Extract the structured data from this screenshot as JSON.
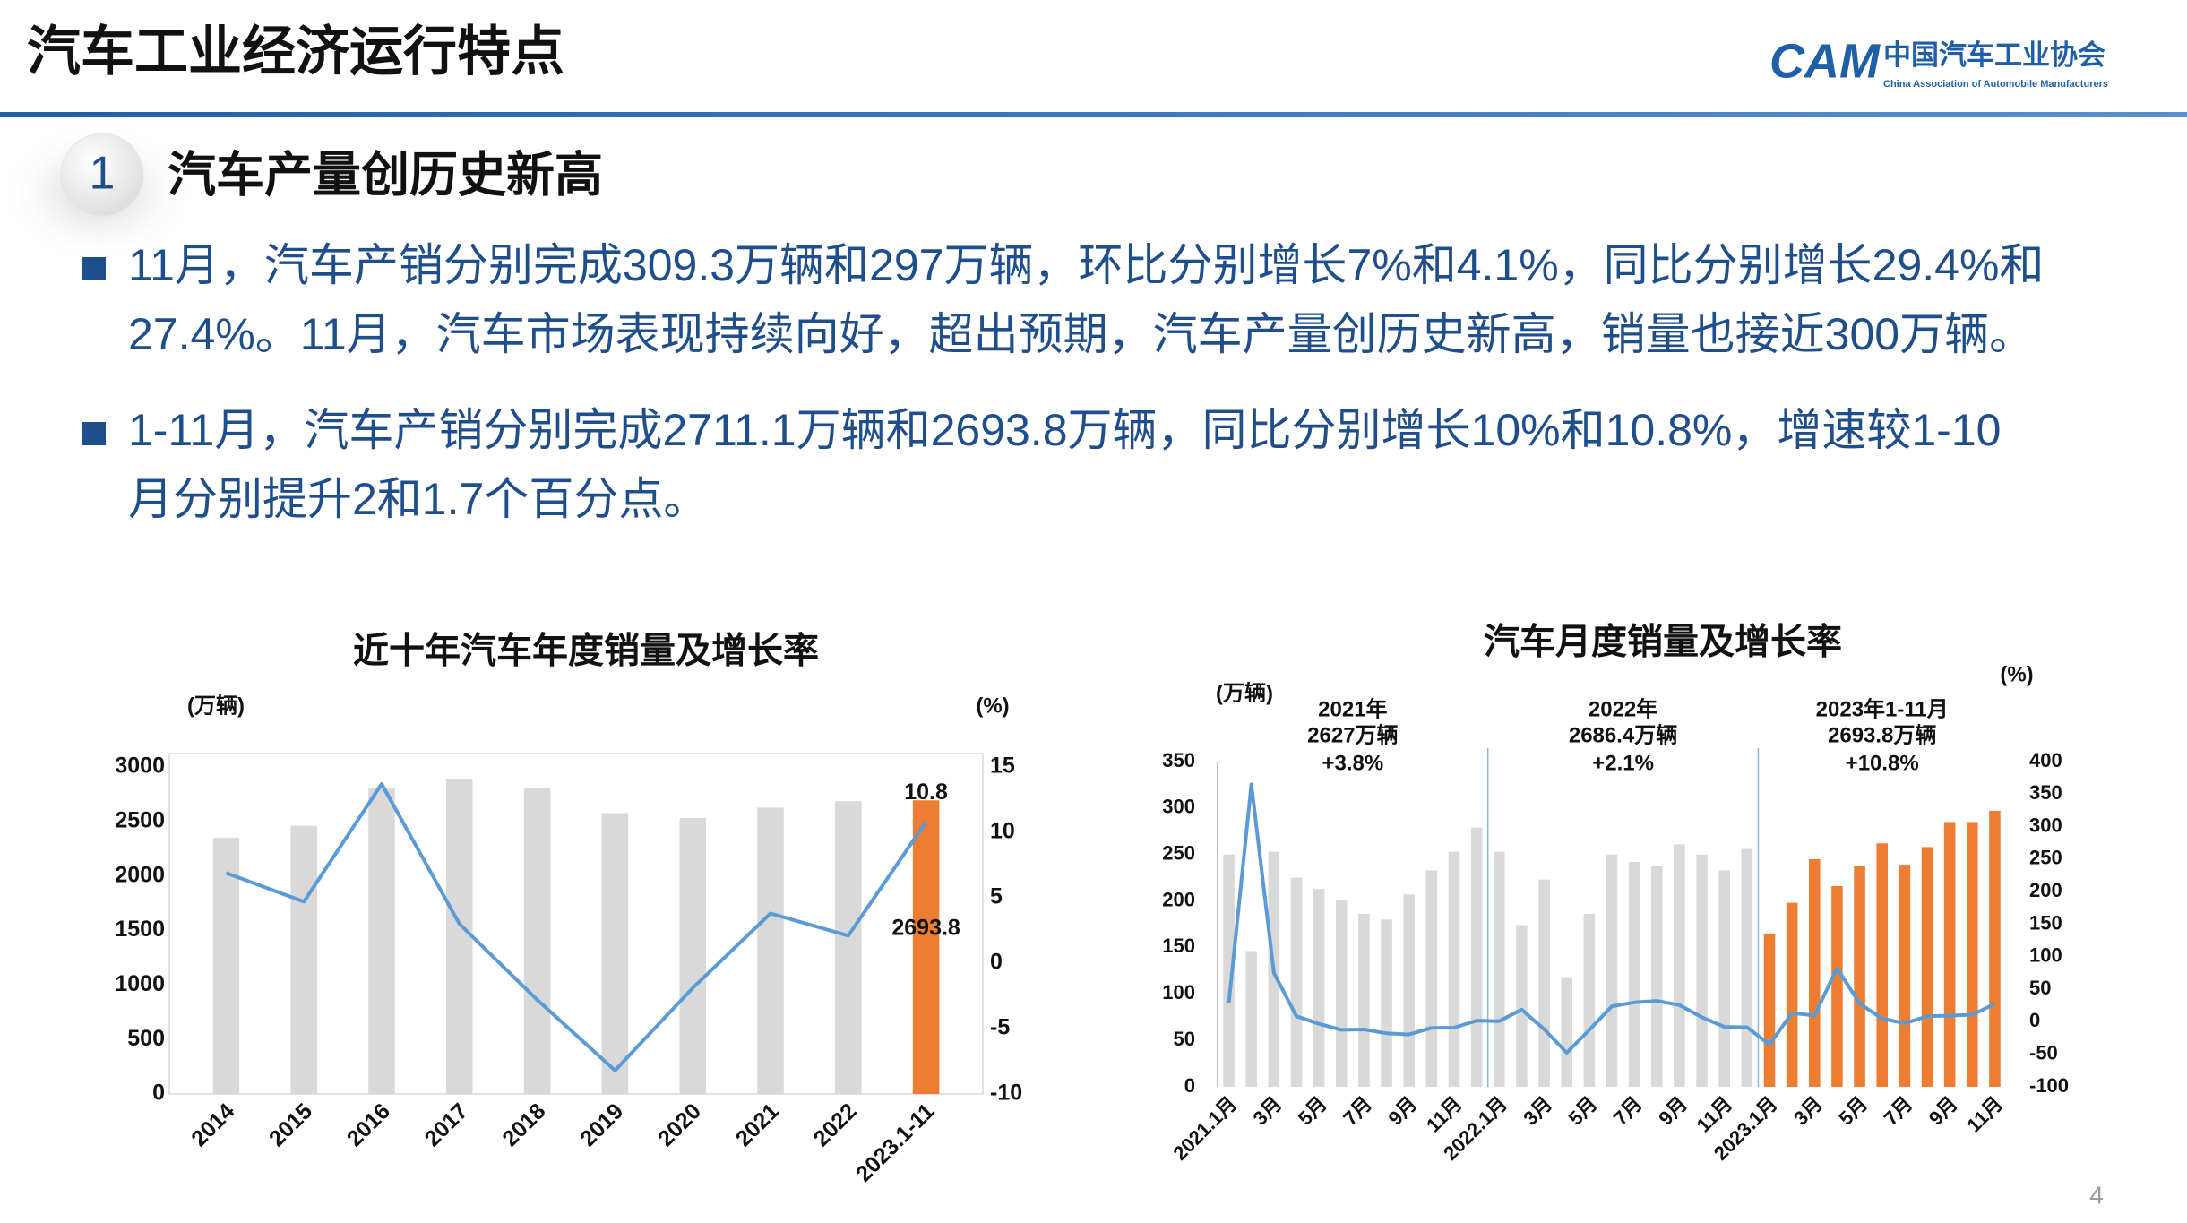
{
  "header": {
    "title": "汽车工业经济运行特点"
  },
  "logo": {
    "mark": "CAM",
    "name_cn": "中国汽车工业协会",
    "name_en": "China Association of Automobile Manufacturers"
  },
  "section": {
    "number": "1",
    "title": "汽车产量创历史新高"
  },
  "bullets": [
    {
      "lines": [
        "11月，汽车产销分别完成309.3万辆和297万辆，环比分别增长7%和4.1%，同比分别增长29.4%和",
        "27.4%。11月，汽车市场表现持续向好，超出预期，汽车产量创历史新高，销量也接近300万辆。"
      ]
    },
    {
      "lines": [
        "1-11月，汽车产销分别完成2711.1万辆和2693.8万辆，同比分别增长10%和10.8%，增速较1-10",
        "月分别提升2和1.7个百分点。"
      ]
    }
  ],
  "chart_data": [
    {
      "type": "combo",
      "title": "近十年汽车年度销量及增长率",
      "y_label": "(万辆)",
      "y2_label": "(%)",
      "categories": [
        "2014",
        "2015",
        "2016",
        "2017",
        "2018",
        "2019",
        "2020",
        "2021",
        "2022",
        "2023.1-11"
      ],
      "series": [
        {
          "type": "bar",
          "colors": [
            "#d9d9d9",
            "#d9d9d9",
            "#d9d9d9",
            "#d9d9d9",
            "#d9d9d9",
            "#d9d9d9",
            "#d9d9d9",
            "#d9d9d9",
            "#d9d9d9",
            "#ed7d31"
          ],
          "values": [
            2349,
            2460,
            2803,
            2888,
            2808,
            2577,
            2531,
            2627,
            2686,
            2693.8
          ],
          "value_labels": [
            null,
            null,
            null,
            null,
            null,
            null,
            null,
            null,
            null,
            "2693.8"
          ]
        },
        {
          "type": "line",
          "axis": "y2",
          "color": "#5b9bd5",
          "values": [
            6.9,
            4.7,
            13.7,
            3.0,
            -2.8,
            -8.2,
            -1.9,
            3.8,
            2.1,
            10.8
          ],
          "value_labels": [
            null,
            null,
            null,
            null,
            null,
            null,
            null,
            null,
            null,
            "10.8"
          ]
        }
      ],
      "ylim": [
        0,
        3000
      ],
      "yticks": [
        0,
        500,
        1000,
        1500,
        2000,
        2500,
        3000
      ],
      "y2lim": [
        -10,
        15
      ],
      "y2ticks": [
        -10,
        -5,
        0,
        5,
        10,
        15
      ],
      "grid": false
    },
    {
      "type": "combo",
      "title": "汽车月度销量及增长率",
      "y_label": "(万辆)",
      "y2_label": "(%)",
      "categories": [
        "2021.1月",
        null,
        "3月",
        null,
        "5月",
        null,
        "7月",
        null,
        "9月",
        null,
        "11月",
        null,
        "2022.1月",
        null,
        "3月",
        null,
        "5月",
        null,
        "7月",
        null,
        "9月",
        null,
        "11月",
        null,
        "2023.1月",
        null,
        "3月",
        null,
        "5月",
        null,
        "7月",
        null,
        "9月",
        null,
        "11月"
      ],
      "series": [
        {
          "type": "bar",
          "colors": [
            "#d9d9d9",
            "#d9d9d9",
            "#d9d9d9",
            "#d9d9d9",
            "#d9d9d9",
            "#d9d9d9",
            "#d9d9d9",
            "#d9d9d9",
            "#d9d9d9",
            "#d9d9d9",
            "#d9d9d9",
            "#d9d9d9",
            "#d9d9d9",
            "#d9d9d9",
            "#d9d9d9",
            "#d9d9d9",
            "#d9d9d9",
            "#d9d9d9",
            "#d9d9d9",
            "#d9d9d9",
            "#d9d9d9",
            "#d9d9d9",
            "#d9d9d9",
            "#d9d9d9",
            "#ed7d31",
            "#ed7d31",
            "#ed7d31",
            "#ed7d31",
            "#ed7d31",
            "#ed7d31",
            "#ed7d31",
            "#ed7d31",
            "#ed7d31",
            "#ed7d31",
            "#ed7d31"
          ],
          "values": [
            250,
            146,
            253,
            225,
            213,
            201,
            186,
            180,
            207,
            233,
            253,
            279,
            253,
            174,
            223,
            118,
            186,
            250,
            242,
            238,
            261,
            250,
            233,
            256,
            165,
            198,
            245,
            216,
            238,
            262,
            239,
            258,
            285,
            285,
            297
          ]
        },
        {
          "type": "line",
          "axis": "y2",
          "color": "#5b9bd5",
          "values": [
            29.5,
            365,
            75,
            8.6,
            -3.1,
            -12.4,
            -11.9,
            -17.8,
            -19.6,
            -9.4,
            -9.1,
            1.6,
            0.9,
            18.7,
            -11.7,
            -47.6,
            -12.6,
            23.8,
            29.7,
            32.1,
            25.7,
            6.9,
            -7.9,
            -8.4,
            -35,
            13.5,
            9.7,
            82.7,
            27.9,
            4.8,
            -2.3,
            8.4,
            9.5,
            10.7,
            27.4
          ]
        }
      ],
      "annotations": [
        [
          "2021年",
          "2627万辆",
          "+3.8%"
        ],
        [
          "2022年",
          "2686.4万辆",
          "+2.1%"
        ],
        [
          "2023年1-11月",
          "2693.8万辆",
          "+10.8%"
        ]
      ],
      "ylim": [
        0,
        350
      ],
      "yticks": [
        0,
        50,
        100,
        150,
        200,
        250,
        300,
        350
      ],
      "y2lim": [
        -100,
        400
      ],
      "y2ticks": [
        -100,
        -50,
        0,
        50,
        100,
        150,
        200,
        250,
        300,
        350,
        400
      ],
      "grid": false
    }
  ],
  "page_number": "4"
}
